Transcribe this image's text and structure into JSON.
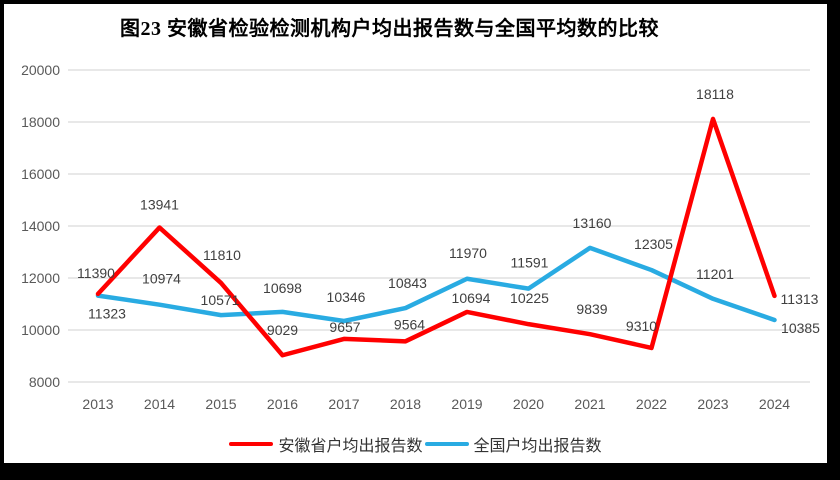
{
  "title": "图23 安徽省检验检测机构户均出报告数与全国平均数的比较",
  "chart_data": {
    "type": "line",
    "title": "图23 安徽省检验检测机构户均出报告数与全国平均数的比较",
    "categories": [
      "2013",
      "2014",
      "2015",
      "2016",
      "2017",
      "2018",
      "2019",
      "2020",
      "2021",
      "2022",
      "2023",
      "2024"
    ],
    "series": [
      {
        "id": "anhui",
        "name": "安徽省户均出报告数",
        "color": "#FF0000",
        "values": [
          11390,
          13941,
          11810,
          9029,
          9657,
          9564,
          10694,
          10225,
          9839,
          9310,
          18118,
          11313
        ]
      },
      {
        "id": "national",
        "name": "全国户均出报告数",
        "color": "#29ABE2",
        "values": [
          11323,
          10974,
          10571,
          10698,
          10346,
          10843,
          11970,
          11591,
          13160,
          12305,
          11201,
          10385
        ]
      }
    ],
    "xlabel": "",
    "ylabel": "",
    "ylim": [
      8000,
      20000
    ],
    "yticks": [
      8000,
      10000,
      12000,
      14000,
      16000,
      18000,
      20000
    ],
    "grid": true,
    "data_labels": true,
    "legend_position": "bottom"
  },
  "colors": {
    "frame": "#000000",
    "background": "#FFFFFF",
    "gridline": "#D9D9D9",
    "axis_text": "#595959",
    "data_label_text": "#404040"
  }
}
